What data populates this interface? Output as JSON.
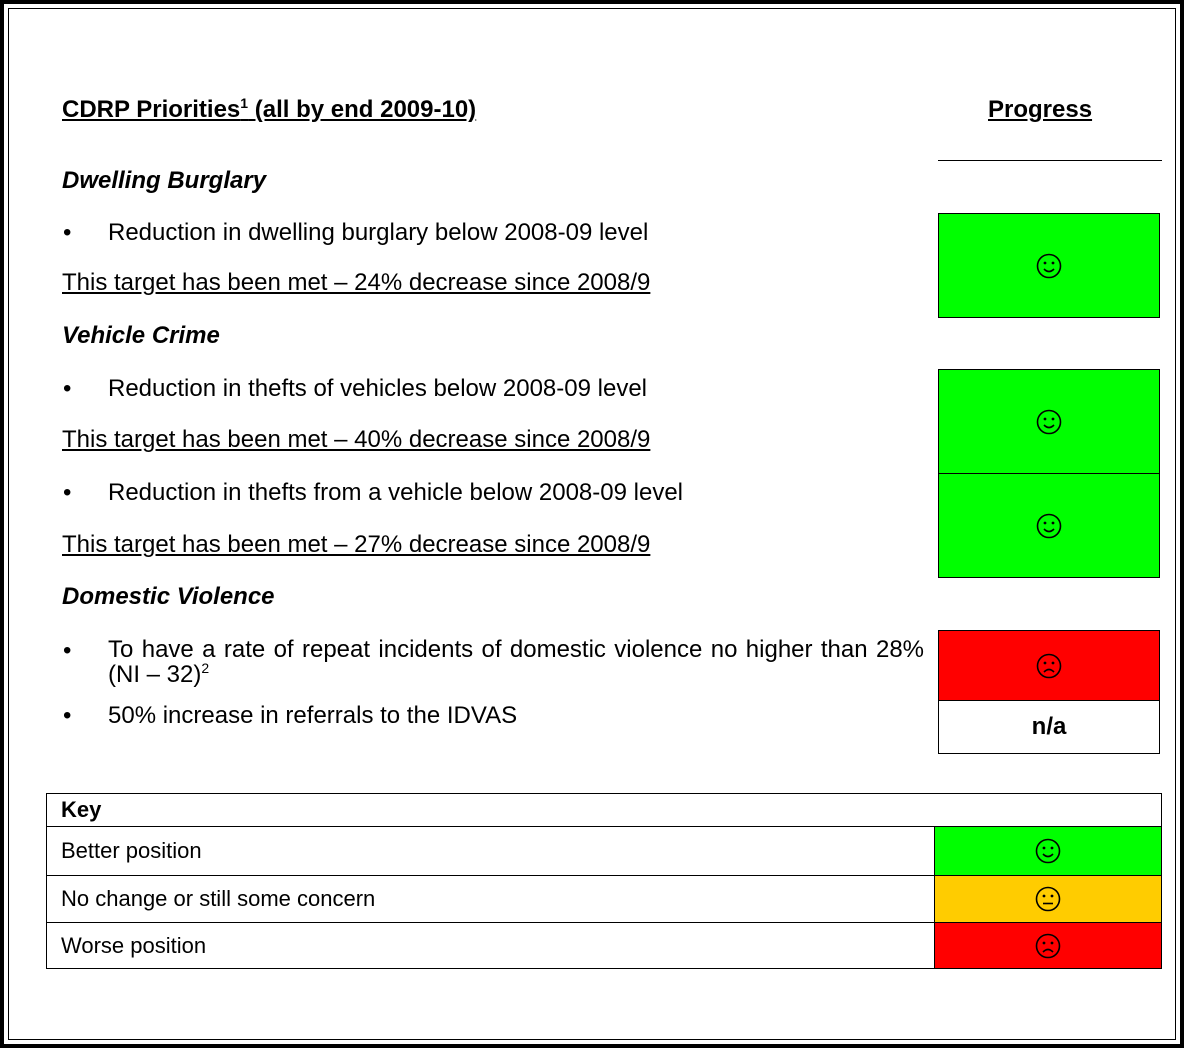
{
  "header": {
    "title": "CDRP Priorities",
    "title_sup": "1",
    "title_rest": " (all by end 2009-10)",
    "progress": "Progress"
  },
  "sections": [
    {
      "heading": "Dwelling Burglary",
      "items": [
        {
          "bullet": "Reduction in dwelling burglary below 2008-09 level",
          "result": "This target has been met – 24% decrease since 2008/9",
          "color": "#00ff00"
        }
      ]
    },
    {
      "heading": "Vehicle Crime",
      "items": [
        {
          "bullet": "Reduction in thefts of vehicles below 2008-09 level",
          "result": "This target has been met – 40% decrease since 2008/9",
          "color": "#00ff00"
        },
        {
          "bullet": "Reduction in thefts from a vehicle below 2008-09 level",
          "result": "This target has been met – 27% decrease since 2008/9",
          "color": "#00ff00"
        }
      ]
    },
    {
      "heading": "Domestic Violence",
      "items": [
        {
          "bullet": "To have a rate of repeat incidents of domestic violence no higher than 28% (NI – 32)",
          "bullet_sup": "2",
          "color": "#ff0000"
        },
        {
          "bullet": "50% increase in referrals to the IDVAS",
          "label": "n/a"
        }
      ]
    }
  ],
  "key": {
    "title": "Key",
    "rows": [
      {
        "label": "Better position",
        "color": "#00ff00"
      },
      {
        "label": "No change or still some concern",
        "color": "#ffcc00"
      },
      {
        "label": "Worse position",
        "color": "#ff0000"
      }
    ]
  }
}
